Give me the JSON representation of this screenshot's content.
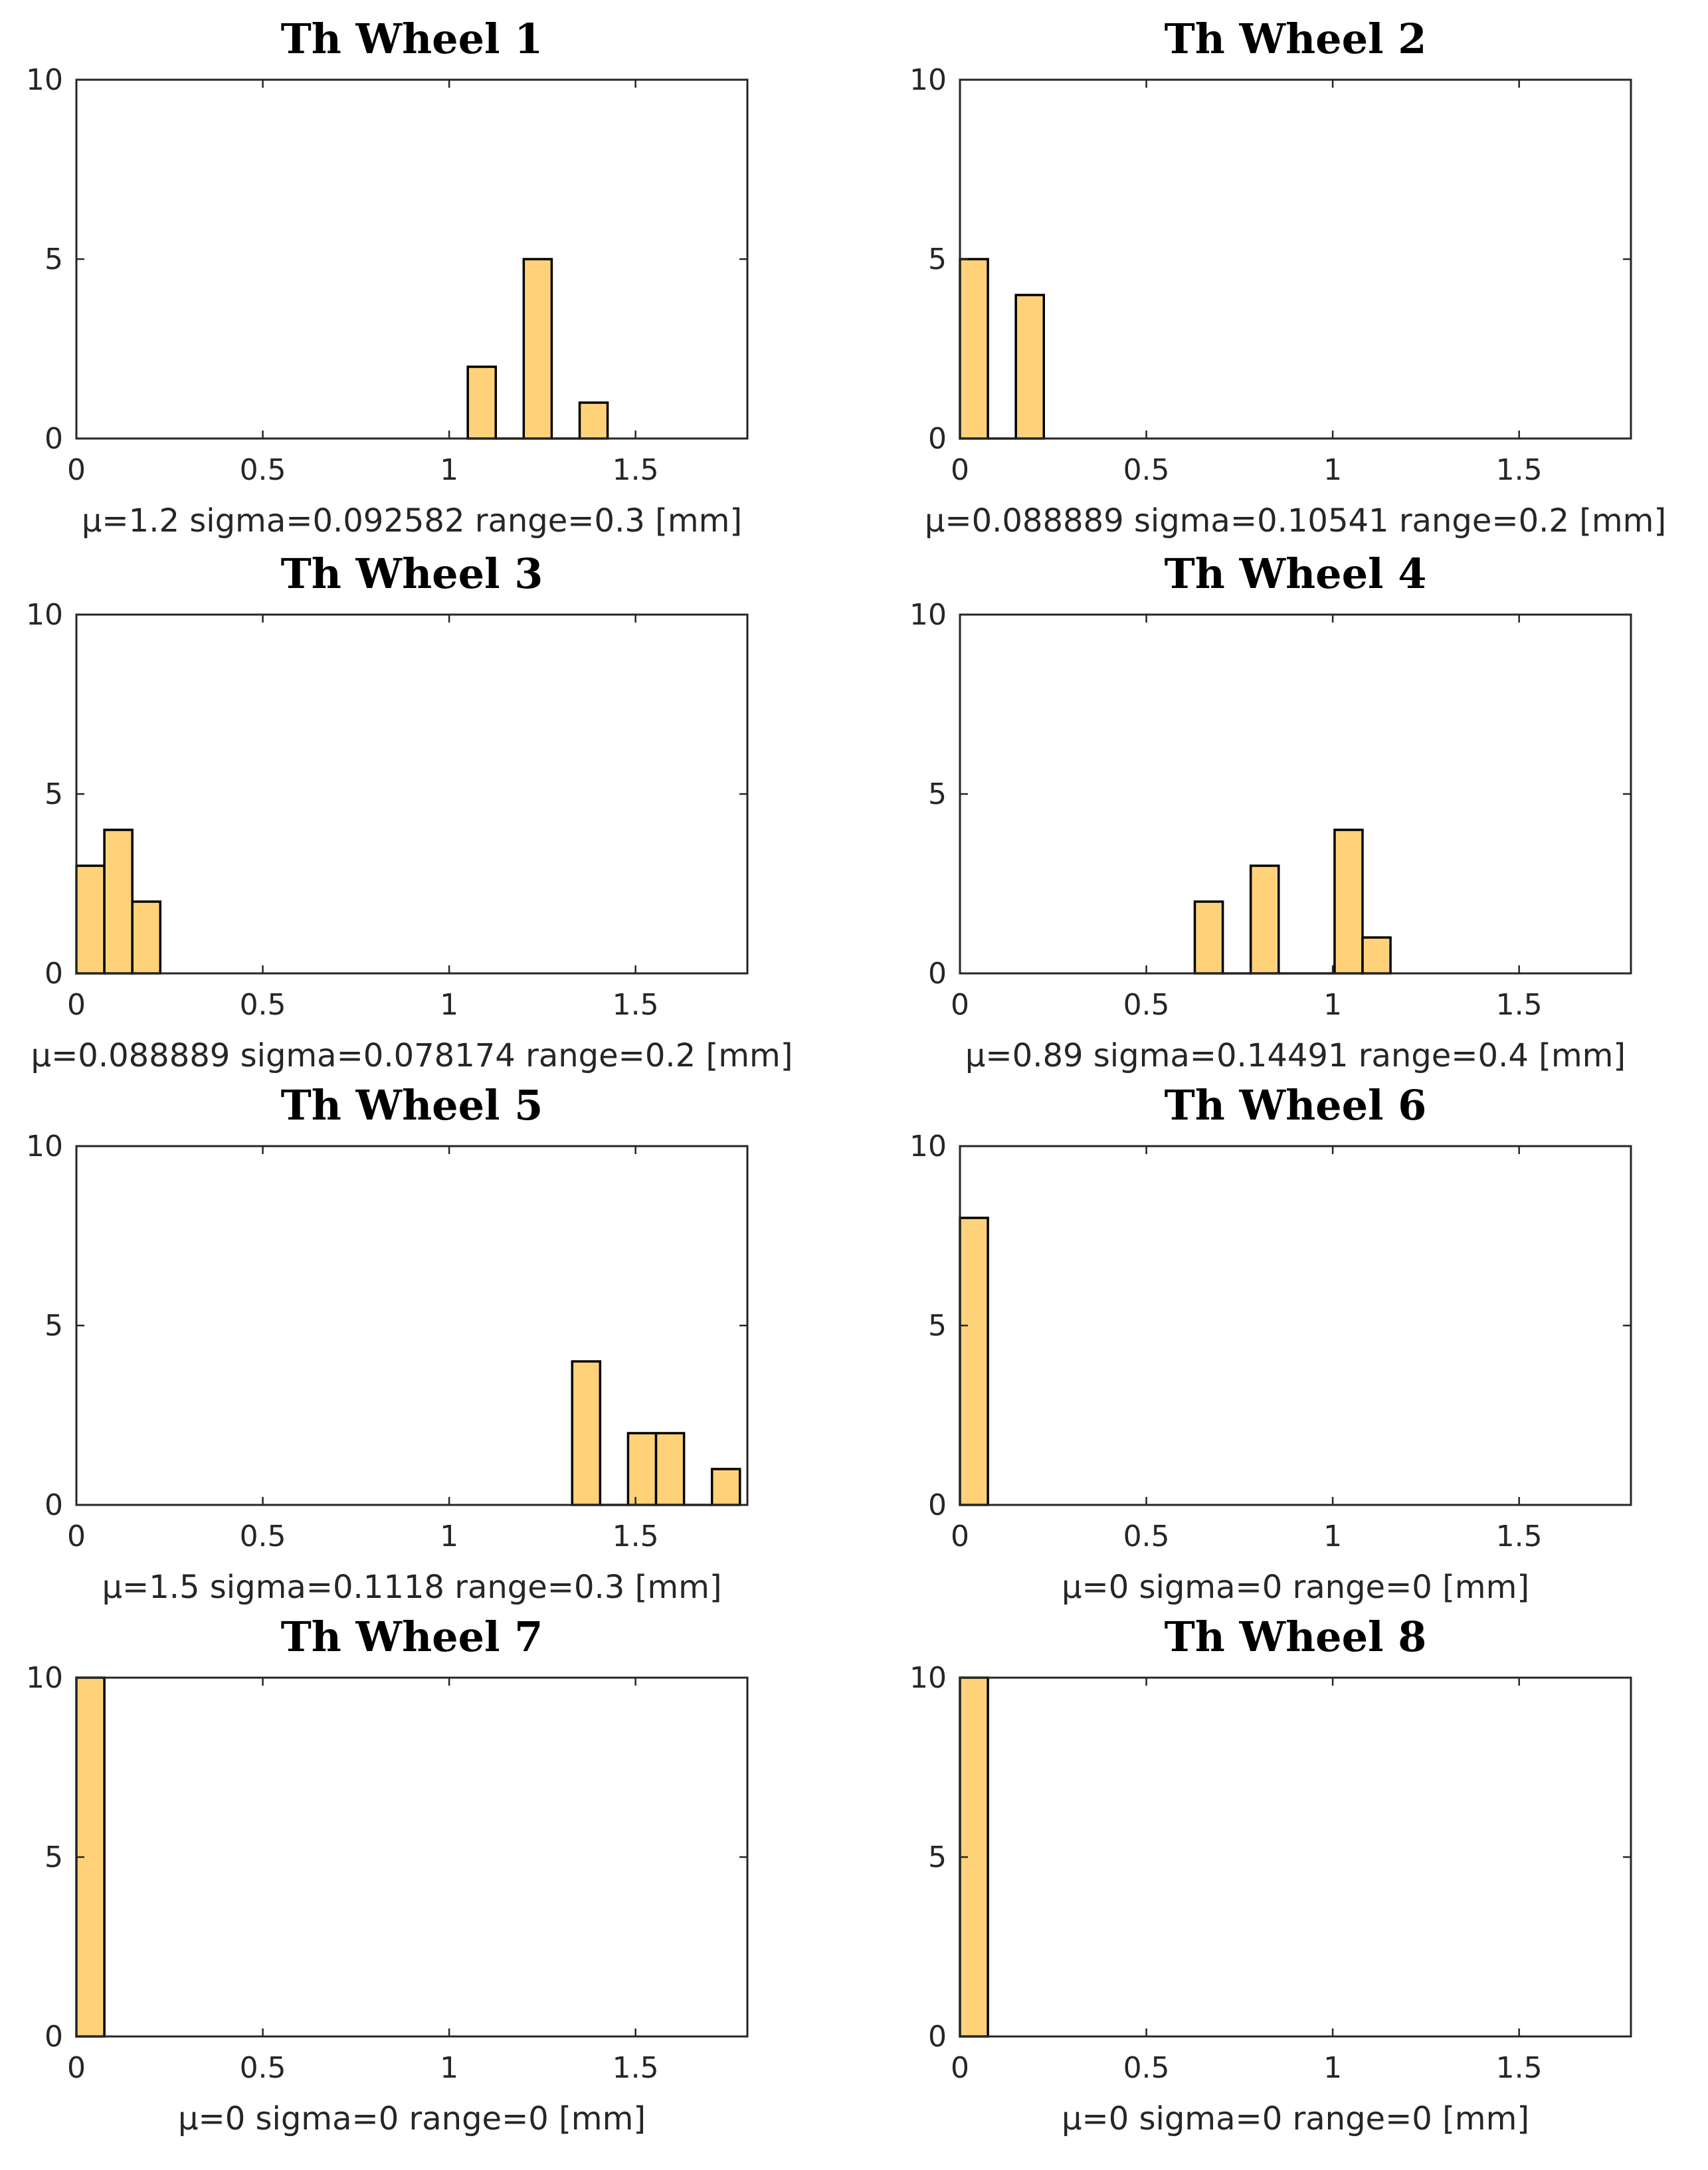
{
  "chart_data": [
    {
      "type": "bar",
      "title": "Th Wheel 1",
      "xlabel": "μ=1.2  sigma=0.092582  range=0.3 [mm]",
      "xlim": [
        0,
        1.8
      ],
      "ylim": [
        0,
        10
      ],
      "xticks": [
        "0",
        "0.5",
        "1",
        "1.5"
      ],
      "yticks": [
        "0",
        "5",
        "10"
      ],
      "bins": [
        {
          "x0": 1.05,
          "x1": 1.125,
          "count": 2
        },
        {
          "x0": 1.125,
          "x1": 1.2,
          "count": 0
        },
        {
          "x0": 1.2,
          "x1": 1.275,
          "count": 5
        },
        {
          "x0": 1.275,
          "x1": 1.35,
          "count": 0
        },
        {
          "x0": 1.35,
          "x1": 1.425,
          "count": 1
        }
      ]
    },
    {
      "type": "bar",
      "title": "Th Wheel 2",
      "xlabel": "μ=0.088889  sigma=0.10541  range=0.2 [mm]",
      "xlim": [
        0,
        1.8
      ],
      "ylim": [
        0,
        10
      ],
      "xticks": [
        "0",
        "0.5",
        "1",
        "1.5"
      ],
      "yticks": [
        "0",
        "5",
        "10"
      ],
      "bins": [
        {
          "x0": 0.0,
          "x1": 0.075,
          "count": 5
        },
        {
          "x0": 0.075,
          "x1": 0.15,
          "count": 0
        },
        {
          "x0": 0.15,
          "x1": 0.225,
          "count": 4
        }
      ]
    },
    {
      "type": "bar",
      "title": "Th Wheel 3",
      "xlabel": "μ=0.088889  sigma=0.078174  range=0.2 [mm]",
      "xlim": [
        0,
        1.8
      ],
      "ylim": [
        0,
        10
      ],
      "xticks": [
        "0",
        "0.5",
        "1",
        "1.5"
      ],
      "yticks": [
        "0",
        "5",
        "10"
      ],
      "bins": [
        {
          "x0": 0.0,
          "x1": 0.075,
          "count": 3
        },
        {
          "x0": 0.075,
          "x1": 0.15,
          "count": 4
        },
        {
          "x0": 0.15,
          "x1": 0.225,
          "count": 2
        }
      ]
    },
    {
      "type": "bar",
      "title": "Th Wheel 4",
      "xlabel": "μ=0.89  sigma=0.14491  range=0.4 [mm]",
      "xlim": [
        0,
        1.8
      ],
      "ylim": [
        0,
        10
      ],
      "xticks": [
        "0",
        "0.5",
        "1",
        "1.5"
      ],
      "yticks": [
        "0",
        "5",
        "10"
      ],
      "bins": [
        {
          "x0": 0.63,
          "x1": 0.705,
          "count": 2
        },
        {
          "x0": 0.705,
          "x1": 0.78,
          "count": 0
        },
        {
          "x0": 0.78,
          "x1": 0.855,
          "count": 3
        },
        {
          "x0": 0.855,
          "x1": 0.93,
          "count": 0
        },
        {
          "x0": 0.93,
          "x1": 1.005,
          "count": 0
        },
        {
          "x0": 1.005,
          "x1": 1.08,
          "count": 4
        },
        {
          "x0": 1.08,
          "x1": 1.155,
          "count": 1
        }
      ]
    },
    {
      "type": "bar",
      "title": "Th Wheel 5",
      "xlabel": "μ=1.5  sigma=0.1118  range=0.3 [mm]",
      "xlim": [
        0,
        1.8
      ],
      "ylim": [
        0,
        10
      ],
      "xticks": [
        "0",
        "0.5",
        "1",
        "1.5"
      ],
      "yticks": [
        "0",
        "5",
        "10"
      ],
      "bins": [
        {
          "x0": 1.33,
          "x1": 1.405,
          "count": 4
        },
        {
          "x0": 1.405,
          "x1": 1.48,
          "count": 0
        },
        {
          "x0": 1.48,
          "x1": 1.555,
          "count": 2
        },
        {
          "x0": 1.555,
          "x1": 1.63,
          "count": 2
        },
        {
          "x0": 1.63,
          "x1": 1.705,
          "count": 0
        },
        {
          "x0": 1.705,
          "x1": 1.78,
          "count": 1
        }
      ]
    },
    {
      "type": "bar",
      "title": "Th Wheel 6",
      "xlabel": "μ=0  sigma=0  range=0 [mm]",
      "xlim": [
        0,
        1.8
      ],
      "ylim": [
        0,
        10
      ],
      "xticks": [
        "0",
        "0.5",
        "1",
        "1.5"
      ],
      "yticks": [
        "0",
        "5",
        "10"
      ],
      "bins": [
        {
          "x0": 0.0,
          "x1": 0.075,
          "count": 8
        }
      ]
    },
    {
      "type": "bar",
      "title": "Th Wheel 7",
      "xlabel": "μ=0  sigma=0  range=0 [mm]",
      "xlim": [
        0,
        1.8
      ],
      "ylim": [
        0,
        10
      ],
      "xticks": [
        "0",
        "0.5",
        "1",
        "1.5"
      ],
      "yticks": [
        "0",
        "5",
        "10"
      ],
      "bins": [
        {
          "x0": 0.0,
          "x1": 0.075,
          "count": 10
        }
      ]
    },
    {
      "type": "bar",
      "title": "Th Wheel 8",
      "xlabel": "μ=0  sigma=0  range=0 [mm]",
      "xlim": [
        0,
        1.8
      ],
      "ylim": [
        0,
        10
      ],
      "xticks": [
        "0",
        "0.5",
        "1",
        "1.5"
      ],
      "yticks": [
        "0",
        "5",
        "10"
      ],
      "bins": [
        {
          "x0": 0.0,
          "x1": 0.075,
          "count": 10
        }
      ]
    }
  ],
  "colors": {
    "bar_fill": "#ffd27a",
    "bar_edge": "#000000",
    "axis": "#262626"
  }
}
